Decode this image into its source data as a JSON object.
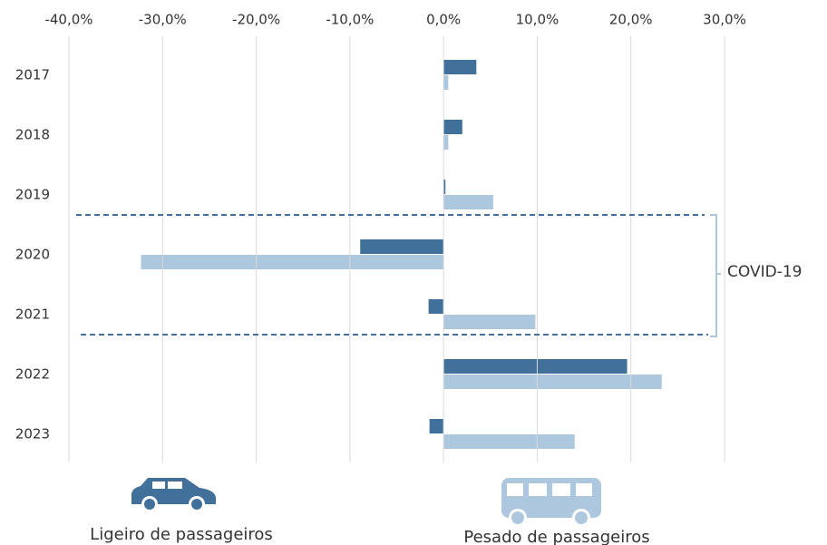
{
  "chart_data": {
    "type": "hbar",
    "categories": [
      "2017",
      "2018",
      "2019",
      "2020",
      "2021",
      "2022",
      "2023"
    ],
    "series": [
      {
        "name": "Ligeiro de passageiros",
        "color": "#41709b",
        "values": [
          3.5,
          2.0,
          0.2,
          -8.9,
          -1.6,
          19.6,
          -1.5
        ]
      },
      {
        "name": "Pesado de passageiros",
        "color": "#adc8de",
        "values": [
          0.5,
          0.5,
          5.3,
          -32.3,
          9.8,
          23.3,
          14.0
        ]
      }
    ],
    "xlim": [
      -40,
      30
    ],
    "xticks": [
      {
        "value": -40,
        "label": "-40,0%"
      },
      {
        "value": -30,
        "label": "-30,0%"
      },
      {
        "value": -20,
        "label": "-20,0%"
      },
      {
        "value": -10,
        "label": "-10,0%"
      },
      {
        "value": 0,
        "label": "0,0%"
      },
      {
        "value": 10,
        "label": "10,0%"
      },
      {
        "value": 20,
        "label": "20,0%"
      },
      {
        "value": 30,
        "label": "30,0%"
      }
    ],
    "grid": true,
    "annotation": "COVID-19"
  }
}
